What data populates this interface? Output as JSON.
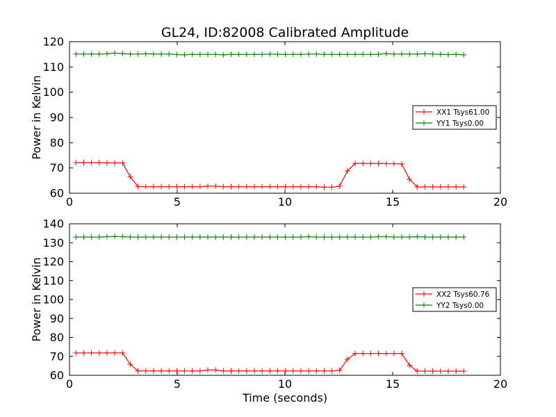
{
  "chart_data": [
    {
      "type": "line",
      "title": "GL24, ID:82008 Calibrated Amplitude",
      "xlabel": "",
      "ylabel": "Power in Kelvin",
      "xlim": [
        0,
        20
      ],
      "ylim": [
        60,
        120
      ],
      "x_ticks": [
        "0",
        "5",
        "10",
        "15",
        "20"
      ],
      "y_ticks": [
        "60",
        "70",
        "80",
        "90",
        "100",
        "110",
        "120"
      ],
      "grid": false,
      "legend_position": "right",
      "x": [
        0.3,
        0.66,
        1.02,
        1.38,
        1.74,
        2.1,
        2.46,
        2.82,
        3.18,
        3.54,
        3.9,
        4.26,
        4.62,
        4.98,
        5.34,
        5.7,
        6.06,
        6.42,
        6.78,
        7.14,
        7.5,
        7.86,
        8.22,
        8.58,
        8.94,
        9.3,
        9.66,
        10.02,
        10.38,
        10.74,
        11.1,
        11.46,
        11.82,
        12.18,
        12.54,
        12.9,
        13.26,
        13.62,
        13.98,
        14.34,
        14.7,
        15.06,
        15.42,
        15.78,
        16.14,
        16.5,
        16.86,
        17.22,
        17.58,
        17.94,
        18.3
      ],
      "series": [
        {
          "name": "XX1 Tsys61.00",
          "color": "#ff0000",
          "values": [
            72.1,
            72.1,
            72.1,
            72.1,
            72.0,
            72.0,
            72.0,
            66.5,
            62.6,
            62.6,
            62.6,
            62.6,
            62.6,
            62.6,
            62.6,
            62.6,
            62.6,
            62.8,
            62.8,
            62.6,
            62.6,
            62.6,
            62.6,
            62.6,
            62.6,
            62.6,
            62.6,
            62.6,
            62.6,
            62.6,
            62.6,
            62.6,
            62.4,
            62.4,
            62.8,
            68.8,
            71.8,
            71.8,
            71.8,
            71.8,
            71.7,
            71.7,
            71.6,
            65.5,
            62.5,
            62.5,
            62.5,
            62.5,
            62.5,
            62.5,
            62.5
          ]
        },
        {
          "name": "YY1 Tsys0.00",
          "color": "#008000",
          "values": [
            115.1,
            115.1,
            115.1,
            115.1,
            115.2,
            115.5,
            115.3,
            115.1,
            115.1,
            115.2,
            115.1,
            115.1,
            115.1,
            114.9,
            114.8,
            115.0,
            115.0,
            115.0,
            115.0,
            114.8,
            115.0,
            115.0,
            115.0,
            115.0,
            115.0,
            115.1,
            115.0,
            115.0,
            115.0,
            115.0,
            115.1,
            115.1,
            115.0,
            115.0,
            115.0,
            115.0,
            115.0,
            115.0,
            115.0,
            115.0,
            115.3,
            115.1,
            115.1,
            115.1,
            115.1,
            115.2,
            115.1,
            115.0,
            114.9,
            115.0,
            114.8
          ]
        }
      ]
    },
    {
      "type": "line",
      "title": "",
      "xlabel": "Time (seconds)",
      "ylabel": "Power in Kelvin",
      "xlim": [
        0,
        20
      ],
      "ylim": [
        60,
        140
      ],
      "x_ticks": [
        "0",
        "5",
        "10",
        "15",
        "20"
      ],
      "y_ticks": [
        "60",
        "70",
        "80",
        "90",
        "100",
        "110",
        "120",
        "130",
        "140"
      ],
      "grid": false,
      "legend_position": "right",
      "x": [
        0.3,
        0.66,
        1.02,
        1.38,
        1.74,
        2.1,
        2.46,
        2.82,
        3.18,
        3.54,
        3.9,
        4.26,
        4.62,
        4.98,
        5.34,
        5.7,
        6.06,
        6.42,
        6.78,
        7.14,
        7.5,
        7.86,
        8.22,
        8.58,
        8.94,
        9.3,
        9.66,
        10.02,
        10.38,
        10.74,
        11.1,
        11.46,
        11.82,
        12.18,
        12.54,
        12.9,
        13.26,
        13.62,
        13.98,
        14.34,
        14.7,
        15.06,
        15.42,
        15.78,
        16.14,
        16.5,
        16.86,
        17.22,
        17.58,
        17.94,
        18.3
      ],
      "series": [
        {
          "name": "XX2 Tsys60.76",
          "color": "#ff0000",
          "values": [
            71.8,
            71.8,
            71.8,
            71.8,
            71.8,
            71.8,
            71.8,
            65.8,
            62.3,
            62.3,
            62.3,
            62.3,
            62.3,
            62.3,
            62.3,
            62.3,
            62.3,
            62.8,
            62.8,
            62.3,
            62.3,
            62.3,
            62.3,
            62.3,
            62.3,
            62.3,
            62.3,
            62.3,
            62.3,
            62.3,
            62.3,
            62.3,
            62.3,
            62.3,
            62.6,
            68.5,
            71.5,
            71.5,
            71.5,
            71.5,
            71.5,
            71.5,
            71.5,
            65.3,
            62.2,
            62.2,
            62.2,
            62.2,
            62.2,
            62.2,
            62.2
          ]
        },
        {
          "name": "YY2 Tsys0.00",
          "color": "#008000",
          "values": [
            133.0,
            133.0,
            133.0,
            133.0,
            133.2,
            133.3,
            133.2,
            133.0,
            133.0,
            133.0,
            133.0,
            133.0,
            133.0,
            133.0,
            133.0,
            133.0,
            133.0,
            133.0,
            133.0,
            133.0,
            133.0,
            133.0,
            133.0,
            133.0,
            133.0,
            133.0,
            133.0,
            133.0,
            133.0,
            133.0,
            133.2,
            133.0,
            133.0,
            133.0,
            133.0,
            133.0,
            133.0,
            133.0,
            133.0,
            133.2,
            133.2,
            133.0,
            133.0,
            133.0,
            133.2,
            133.0,
            133.0,
            133.0,
            133.0,
            133.0,
            133.0
          ]
        }
      ]
    }
  ]
}
